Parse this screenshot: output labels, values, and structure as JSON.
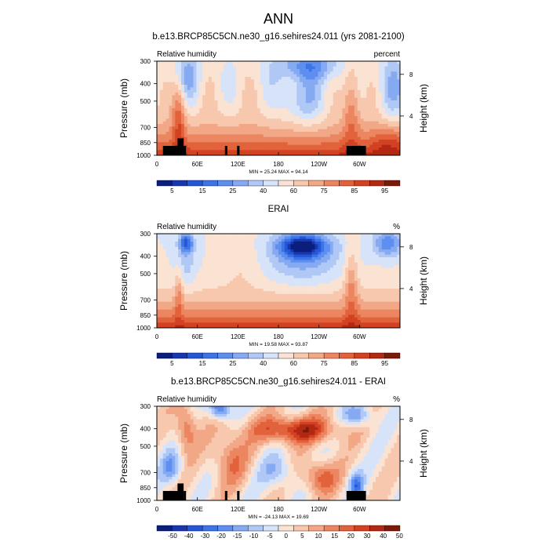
{
  "figure_title": "ANN",
  "chart_data": [
    {
      "type": "heatmap",
      "title": "b.e13.BRCP85C5CN.ne30_g16.sehires24.011 (yrs 2081-2100)",
      "left_label": "Relative humidity",
      "right_label": "percent",
      "ylabel": "Pressure (mb)",
      "ylabel_right": "Height (km)",
      "x_ticks": [
        "0",
        "60E",
        "120E",
        "180",
        "120W",
        "60W"
      ],
      "y_ticks": [
        "300",
        "400",
        "500",
        "700",
        "850",
        "1000"
      ],
      "y_ticks_right": [
        "8",
        "4"
      ],
      "min_max_text": "MIN = 25.24  MAX = 94.14",
      "colorbar_labels": [
        "5",
        "15",
        "25",
        "40",
        "60",
        "75",
        "85",
        "95"
      ],
      "colors": [
        "#0b1e7c",
        "#1736b0",
        "#2456d6",
        "#3c74e8",
        "#5e8ff0",
        "#86aaf2",
        "#b0c8f5",
        "#d6e3f8",
        "#fbe3d4",
        "#f7c8ad",
        "#f2a886",
        "#ec8661",
        "#e2623c",
        "#d24222",
        "#b22812",
        "#7c1a0a"
      ],
      "n_colors": 16,
      "value_range": [
        0,
        100
      ],
      "min": 25.24,
      "max": 94.14,
      "terrain_mask": true
    },
    {
      "type": "heatmap",
      "title": "ERAI",
      "left_label": "Relative humidity",
      "right_label": "%",
      "ylabel": "Pressure (mb)",
      "ylabel_right": "Height (km)",
      "x_ticks": [
        "0",
        "60E",
        "120E",
        "180",
        "120W",
        "60W"
      ],
      "y_ticks": [
        "300",
        "400",
        "500",
        "700",
        "850",
        "1000"
      ],
      "y_ticks_right": [
        "8",
        "4"
      ],
      "min_max_text": "MIN = 19.58  MAX = 93.87",
      "colorbar_labels": [
        "5",
        "15",
        "25",
        "40",
        "60",
        "75",
        "85",
        "95"
      ],
      "colors": [
        "#0b1e7c",
        "#1736b0",
        "#2456d6",
        "#3c74e8",
        "#5e8ff0",
        "#86aaf2",
        "#b0c8f5",
        "#d6e3f8",
        "#fbe3d4",
        "#f7c8ad",
        "#f2a886",
        "#ec8661",
        "#e2623c",
        "#d24222",
        "#b22812",
        "#7c1a0a"
      ],
      "n_colors": 16,
      "value_range": [
        0,
        100
      ],
      "min": 19.58,
      "max": 93.87,
      "terrain_mask": false
    },
    {
      "type": "heatmap",
      "title": "b.e13.BRCP85C5CN.ne30_g16.sehires24.011 - ERAI",
      "left_label": "Relative humidity",
      "right_label": "%",
      "ylabel": "Pressure (mb)",
      "ylabel_right": "Height (km)",
      "x_ticks": [
        "0",
        "60E",
        "120E",
        "180",
        "120W",
        "60W"
      ],
      "y_ticks": [
        "300",
        "400",
        "500",
        "700",
        "850",
        "1000"
      ],
      "y_ticks_right": [
        "8",
        "4"
      ],
      "min_max_text": "MIN = -24.13  MAX = 19.69",
      "colorbar_labels": [
        "-50",
        "-40",
        "-30",
        "-20",
        "-15",
        "-10",
        "-5",
        "0",
        "5",
        "10",
        "15",
        "20",
        "30",
        "40",
        "50"
      ],
      "colors": [
        "#0b1e7c",
        "#1736b0",
        "#2456d6",
        "#3c74e8",
        "#5e8ff0",
        "#86aaf2",
        "#b0c8f5",
        "#d6e3f8",
        "#fbe3d4",
        "#f7c8ad",
        "#f2a886",
        "#ec8661",
        "#e2623c",
        "#d24222",
        "#b22812",
        "#7c1a0a"
      ],
      "n_colors": 16,
      "value_range": [
        -25,
        25
      ],
      "min": -24.13,
      "max": 19.69,
      "terrain_mask": true
    }
  ]
}
